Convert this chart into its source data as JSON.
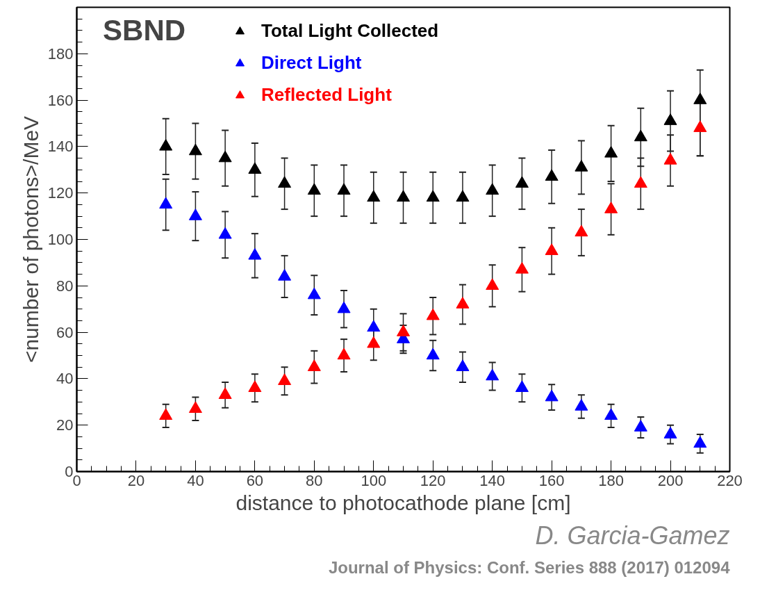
{
  "chart_data": {
    "type": "scatter",
    "marker": "triangle",
    "xlabel": "distance to photocathode plane [cm]",
    "ylabel": "<number of photons>/MeV",
    "x": [
      30,
      40,
      50,
      60,
      70,
      80,
      90,
      100,
      110,
      120,
      130,
      140,
      150,
      160,
      170,
      180,
      190,
      200,
      210
    ],
    "xlim": [
      0,
      220
    ],
    "xticks": [
      0,
      20,
      40,
      60,
      80,
      100,
      120,
      140,
      160,
      180,
      200,
      220
    ],
    "ylim": [
      0,
      200
    ],
    "yticks": [
      0,
      20,
      40,
      60,
      80,
      100,
      120,
      140,
      160,
      180
    ],
    "grid": false,
    "legend": "top",
    "series": [
      {
        "name": "Total Light Collected",
        "color": "#000000",
        "values": [
          140,
          138,
          135,
          130,
          124,
          121,
          121,
          118,
          118,
          118,
          118,
          121,
          124,
          127,
          131,
          137,
          144,
          151,
          160
        ],
        "errors": [
          12,
          12,
          12,
          11.5,
          11,
          11,
          11,
          11,
          11,
          11,
          11,
          11,
          11,
          11.5,
          11.5,
          12,
          12.5,
          13,
          [
            136,
            173
          ]
        ]
      },
      {
        "name": "Direct Light",
        "color": "#0000ff",
        "values": [
          115,
          110,
          102,
          93,
          84,
          76,
          70,
          62,
          57,
          50,
          45,
          41,
          36,
          32,
          28,
          24,
          19,
          16,
          12
        ],
        "errors": [
          11,
          10.5,
          10,
          9.5,
          9,
          8.5,
          8,
          8,
          6,
          6.5,
          6.5,
          6,
          6,
          5.5,
          5,
          5,
          4.5,
          4,
          4
        ]
      },
      {
        "name": "Reflected Light",
        "color": "#ff0000",
        "values": [
          24,
          27,
          33,
          36,
          39,
          45,
          50,
          55,
          60,
          67,
          72,
          80,
          87,
          95,
          103,
          113,
          124,
          134,
          148
        ],
        "errors": [
          5,
          5,
          5.5,
          6,
          6,
          7,
          7,
          7,
          8,
          8,
          8.5,
          9,
          9.5,
          10,
          10,
          11,
          11,
          11,
          12
        ]
      }
    ],
    "annotations": [
      "SBND",
      "D. Garcia-Gamez",
      "Journal of Physics: Conf. Series 888 (2017) 012094"
    ]
  }
}
